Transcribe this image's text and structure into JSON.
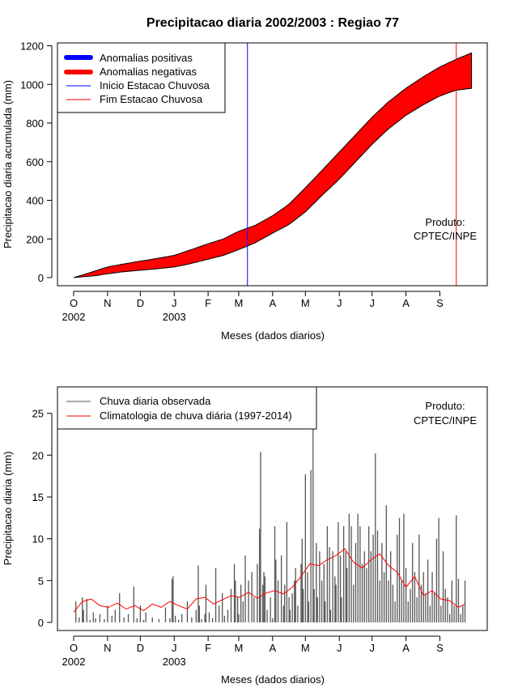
{
  "title": "Precipitacao diaria 2002/2003 : Regiao 77",
  "colors": {
    "positive": "#0000ff",
    "negative": "#ff0000",
    "onset": "#0000ff",
    "end": "#ff0000",
    "observed": "#555555",
    "climatology": "#ff0000"
  },
  "chart_data": [
    {
      "type": "area",
      "title": "Precipitacao diaria 2002/2003 : Regiao 77",
      "xlabel": "Meses (dados diarios)",
      "ylabel": "Precipitacao diaria acumulada (mm)",
      "xlim": [
        0,
        365
      ],
      "ylim": [
        0,
        1200
      ],
      "yticks": [
        0,
        200,
        400,
        600,
        800,
        1000,
        1200
      ],
      "month_ticks": [
        {
          "day": 0,
          "label": "O"
        },
        {
          "day": 31,
          "label": "N"
        },
        {
          "day": 61,
          "label": "D"
        },
        {
          "day": 92,
          "label": "J"
        },
        {
          "day": 123,
          "label": "F"
        },
        {
          "day": 151,
          "label": "M"
        },
        {
          "day": 182,
          "label": "A"
        },
        {
          "day": 212,
          "label": "M"
        },
        {
          "day": 243,
          "label": "J"
        },
        {
          "day": 273,
          "label": "J"
        },
        {
          "day": 304,
          "label": "A"
        },
        {
          "day": 335,
          "label": "S"
        }
      ],
      "year_labels": [
        {
          "day": 0,
          "label": "2002"
        },
        {
          "day": 92,
          "label": "2003"
        }
      ],
      "climatology_cumulative": {
        "x": [
          0,
          10,
          20,
          31,
          45,
          61,
          75,
          92,
          105,
          123,
          137,
          151,
          166,
          182,
          197,
          212,
          228,
          243,
          258,
          273,
          288,
          304,
          320,
          335,
          350,
          365
        ],
        "y": [
          0,
          17,
          35,
          55,
          70,
          85,
          98,
          115,
          140,
          175,
          200,
          240,
          270,
          320,
          380,
          465,
          560,
          650,
          740,
          830,
          910,
          980,
          1040,
          1090,
          1130,
          1165
        ]
      },
      "observed_cumulative": {
        "x": [
          0,
          10,
          20,
          31,
          45,
          61,
          75,
          92,
          105,
          123,
          137,
          151,
          166,
          182,
          197,
          212,
          228,
          243,
          258,
          273,
          288,
          304,
          320,
          335,
          350,
          365
        ],
        "y": [
          0,
          5,
          10,
          20,
          30,
          38,
          45,
          55,
          70,
          95,
          115,
          145,
          180,
          230,
          275,
          340,
          430,
          510,
          600,
          690,
          770,
          840,
          895,
          940,
          970,
          980
        ]
      },
      "onset_day": 159,
      "end_day": 350,
      "legend": [
        {
          "label": "Anomalias positivas",
          "style": "thick",
          "color": "#0000ff"
        },
        {
          "label": "Anomalias negativas",
          "style": "thick",
          "color": "#ff0000"
        },
        {
          "label": "Inicio Estacao Chuvosa",
          "style": "thin",
          "color": "#0000ff"
        },
        {
          "label": "Fim Estacao Chuvosa",
          "style": "thin",
          "color": "#ff0000"
        }
      ],
      "annotation": [
        "Produto:",
        "CPTEC/INPE"
      ]
    },
    {
      "type": "bar",
      "xlabel": "Meses (dados diarios)",
      "ylabel": "Precipitacao diaria (mm)",
      "xlim": [
        0,
        365
      ],
      "ylim": [
        0,
        27
      ],
      "yticks": [
        0,
        5,
        10,
        15,
        20,
        25
      ],
      "month_ticks": [
        {
          "day": 0,
          "label": "O"
        },
        {
          "day": 31,
          "label": "N"
        },
        {
          "day": 61,
          "label": "D"
        },
        {
          "day": 92,
          "label": "J"
        },
        {
          "day": 123,
          "label": "F"
        },
        {
          "day": 151,
          "label": "M"
        },
        {
          "day": 182,
          "label": "A"
        },
        {
          "day": 212,
          "label": "M"
        },
        {
          "day": 243,
          "label": "J"
        },
        {
          "day": 273,
          "label": "J"
        },
        {
          "day": 304,
          "label": "A"
        },
        {
          "day": 335,
          "label": "S"
        }
      ],
      "year_labels": [
        {
          "day": 0,
          "label": "2002"
        },
        {
          "day": 92,
          "label": "2003"
        }
      ],
      "observed_daily": {
        "day": [
          2,
          5,
          8,
          9,
          12,
          15,
          18,
          20,
          24,
          28,
          31,
          35,
          38,
          42,
          46,
          50,
          55,
          58,
          61,
          64,
          66,
          72,
          78,
          84,
          88,
          90,
          91,
          93,
          96,
          99,
          104,
          108,
          112,
          114,
          115,
          117,
          120,
          121,
          124,
          127,
          130,
          133,
          136,
          138,
          141,
          144,
          147,
          148,
          150,
          151,
          153,
          155,
          157,
          160,
          163,
          165,
          168,
          170,
          171,
          173,
          174,
          175,
          177,
          180,
          182,
          184,
          185,
          187,
          190,
          192,
          193,
          195,
          197,
          198,
          200,
          202,
          203,
          205,
          208,
          209,
          210,
          212,
          214,
          215,
          217,
          219,
          220,
          222,
          223,
          225,
          227,
          229,
          230,
          232,
          234,
          235,
          237,
          239,
          240,
          242,
          244,
          245,
          247,
          249,
          250,
          252,
          254,
          256,
          258,
          260,
          262,
          264,
          266,
          268,
          270,
          272,
          274,
          276,
          278,
          280,
          282,
          284,
          286,
          288,
          290,
          292,
          294,
          296,
          298,
          300,
          302,
          304,
          306,
          308,
          310,
          312,
          314,
          316,
          318,
          320,
          322,
          324,
          326,
          328,
          330,
          332,
          334,
          336,
          338,
          340,
          342,
          344,
          346,
          348,
          350,
          352,
          354,
          356,
          358
        ],
        "mm": [
          2.5,
          0.6,
          3.0,
          1.5,
          2.8,
          0.3,
          1.2,
          0.5,
          1.0,
          0.4,
          2.0,
          0.8,
          1.5,
          3.5,
          0.6,
          1.0,
          4.3,
          0.5,
          2.0,
          0.3,
          1.2,
          0.6,
          0.4,
          1.8,
          0.5,
          5.2,
          5.5,
          0.8,
          0.3,
          1.0,
          2.5,
          0.6,
          1.5,
          6.8,
          2.0,
          0.4,
          1.0,
          4.5,
          1.2,
          0.5,
          6.5,
          2.0,
          3.5,
          0.8,
          1.5,
          4.0,
          7.0,
          5.0,
          3.0,
          1.0,
          4.5,
          2.5,
          8.0,
          5.0,
          6.0,
          3.0,
          7.0,
          11.2,
          20.4,
          4.5,
          6.0,
          5.5,
          1.5,
          3.0,
          0.5,
          11.5,
          7.5,
          5.0,
          8.0,
          2.0,
          4.5,
          12.0,
          3.0,
          1.5,
          3.5,
          5.0,
          6.5,
          2.0,
          7.0,
          10.0,
          4.0,
          17.7,
          6.0,
          2.5,
          18.2,
          27.0,
          4.0,
          9.5,
          3.0,
          8.5,
          5.0,
          7.0,
          2.5,
          11.5,
          9.0,
          1.5,
          8.5,
          5.5,
          4.5,
          12.0,
          8.0,
          3.0,
          11.5,
          8.5,
          6.5,
          13.0,
          11.5,
          4.5,
          9.5,
          13.0,
          11.5,
          7.0,
          8.5,
          6.5,
          11.5,
          8.5,
          10.5,
          20.2,
          11.0,
          5.0,
          9.5,
          6.0,
          14.0,
          5.0,
          8.5,
          4.5,
          2.5,
          10.5,
          12.5,
          5.0,
          13.0,
          6.5,
          2.5,
          4.0,
          9.5,
          6.0,
          3.0,
          10.5,
          4.5,
          6.0,
          3.5,
          7.5,
          2.0,
          6.0,
          3.5,
          10.0,
          12.5,
          2.0,
          8.5,
          4.0,
          3.0,
          1.0,
          5.0,
          2.0,
          12.8,
          5.2,
          1.0,
          2.0,
          5.0,
          1.5,
          0.5
        ]
      },
      "climatology_daily": {
        "x": [
          0,
          8,
          16,
          24,
          32,
          40,
          48,
          56,
          64,
          72,
          80,
          88,
          96,
          104,
          112,
          120,
          128,
          136,
          144,
          152,
          160,
          168,
          176,
          184,
          192,
          200,
          208,
          216,
          224,
          232,
          240,
          248,
          256,
          264,
          272,
          280,
          288,
          296,
          304,
          312,
          320,
          328,
          336,
          344,
          352,
          358
        ],
        "y": [
          1.2,
          2.5,
          2.8,
          2.0,
          1.8,
          2.3,
          1.6,
          2.0,
          1.4,
          2.2,
          1.8,
          2.5,
          2.0,
          1.6,
          2.8,
          3.0,
          2.2,
          2.7,
          3.2,
          3.0,
          3.6,
          2.9,
          3.5,
          3.8,
          3.4,
          4.2,
          5.5,
          7.0,
          6.8,
          7.5,
          8.0,
          8.8,
          7.2,
          6.5,
          7.5,
          8.2,
          6.8,
          6.0,
          4.2,
          5.5,
          3.2,
          3.8,
          2.8,
          2.6,
          1.8,
          2.2
        ]
      },
      "legend": [
        {
          "label": "Chuva diaria observada",
          "color": "#555555"
        },
        {
          "label": "Climatologia de chuva diária (1997-2014)",
          "color": "#ff0000"
        }
      ],
      "annotation": [
        "Produto:",
        "CPTEC/INPE"
      ]
    }
  ]
}
